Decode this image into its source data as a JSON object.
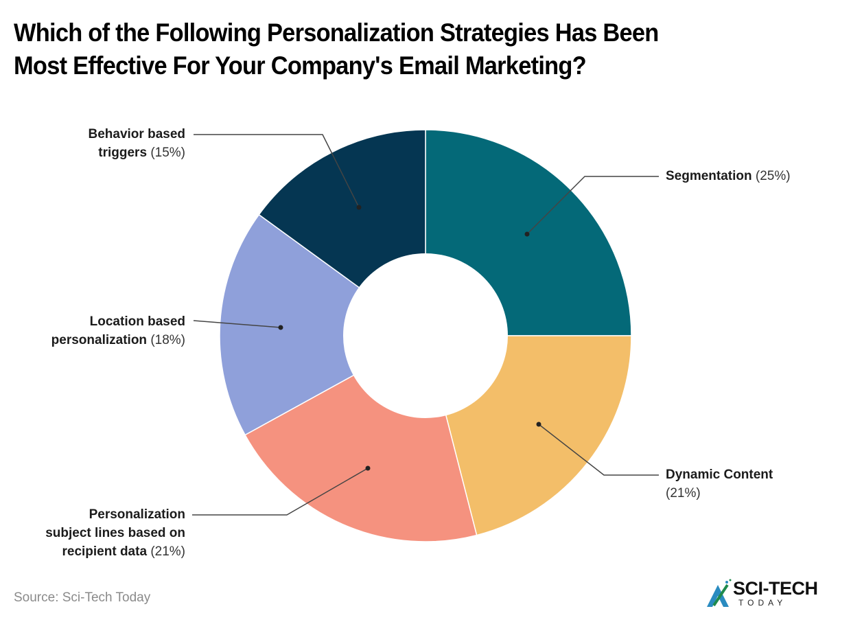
{
  "title": {
    "line1": "Which of the Following Personalization Strategies Has Been",
    "line2": "Most Effective For Your Company's Email Marketing?"
  },
  "labels": {
    "segmentation": {
      "name": "Segmentation",
      "pct": "(25%)"
    },
    "dynamic": {
      "name": "Dynamic Content",
      "pct": "(21%)"
    },
    "subject": {
      "line1": "Personalization",
      "line2": "subject lines based on",
      "line3": "recipient data",
      "pct": "(21%)"
    },
    "location": {
      "line1": "Location based",
      "line2": "personalization",
      "pct": "(18%)"
    },
    "behavior": {
      "line1": "Behavior based",
      "line2": "triggers",
      "pct": "(15%)"
    }
  },
  "source": "Source: Sci-Tech Today",
  "logo": {
    "word": "SCI-TECH",
    "sub": "TODAY"
  },
  "colors": {
    "segmentation": "#046978",
    "dynamic": "#f3be69",
    "subject": "#f5927f",
    "location": "#8fa0da",
    "behavior": "#053652"
  },
  "chart_data": {
    "type": "pie",
    "variant": "donut",
    "title": "Which of the Following Personalization Strategies Has Been Most Effective For Your Company's Email Marketing?",
    "categories": [
      "Segmentation",
      "Dynamic Content",
      "Personalization subject lines based on recipient data",
      "Location based personalization",
      "Behavior based triggers"
    ],
    "values": [
      25,
      21,
      21,
      18,
      15
    ],
    "unit": "%",
    "start_angle": "top (12 o'clock), clockwise",
    "colors": [
      "#046978",
      "#f3be69",
      "#f5927f",
      "#8fa0da",
      "#053652"
    ],
    "legend": "none (callout labels)",
    "source": "Source: Sci-Tech Today"
  }
}
